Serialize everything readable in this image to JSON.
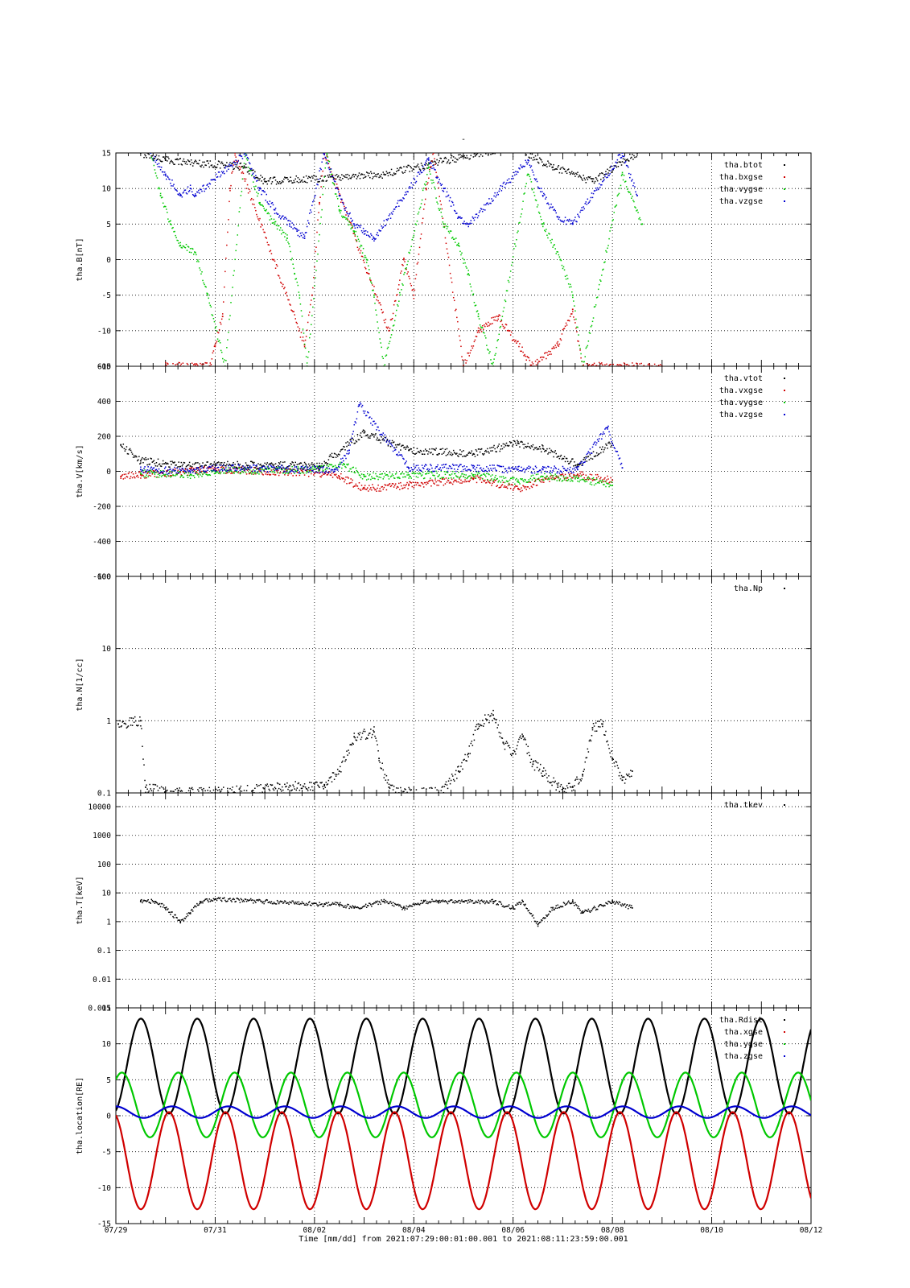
{
  "page_title": "-",
  "xaxis": {
    "tick_labels": [
      "07/29",
      "07/31",
      "08/02",
      "08/04",
      "08/06",
      "08/08",
      "08/10",
      "08/12"
    ],
    "caption": "Time [mm/dd]  from 2021:07:29:00:01:00.001  to  2021:08:11:23:59:00.001"
  },
  "colors": {
    "black": "#000000",
    "red": "#d00000",
    "green": "#00c800",
    "blue": "#0000d0"
  },
  "chart_data": [
    {
      "type": "scatter",
      "ylabel": "tha.B[nT]",
      "ylim": [
        -15,
        15
      ],
      "yscale": "linear",
      "y_tick_labels": [
        "15",
        "10",
        "5",
        "0",
        "-5",
        "-10",
        "-15"
      ],
      "xlim_days": [
        0,
        14
      ],
      "grid": true,
      "legend_position": "top-right",
      "series": [
        {
          "name": "tha.btot",
          "color": "#000000",
          "points": [
            [
              0.5,
              15
            ],
            [
              1.0,
              14
            ],
            [
              2.6,
              13
            ],
            [
              3.0,
              11
            ],
            [
              5.4,
              12
            ],
            [
              8.0,
              16
            ],
            [
              8.8,
              13
            ],
            [
              9.6,
              11
            ],
            [
              10.5,
              15
            ]
          ]
        },
        {
          "name": "tha.bxgse",
          "color": "#d00000",
          "points": [
            [
              1.0,
              -15
            ],
            [
              1.3,
              -15
            ],
            [
              1.9,
              -15
            ],
            [
              2.0,
              -12
            ],
            [
              2.15,
              -8
            ],
            [
              2.3,
              10
            ],
            [
              2.4,
              15
            ],
            [
              3.8,
              -12
            ],
            [
              3.95,
              -5
            ],
            [
              4.1,
              8
            ],
            [
              4.2,
              15
            ],
            [
              5.5,
              -10
            ],
            [
              5.8,
              0
            ],
            [
              6.0,
              -5
            ],
            [
              6.25,
              10
            ],
            [
              6.4,
              15
            ],
            [
              7.0,
              -15
            ],
            [
              7.3,
              -10
            ],
            [
              7.7,
              -8
            ],
            [
              8.4,
              -15
            ],
            [
              8.9,
              -12
            ],
            [
              9.2,
              -7
            ],
            [
              9.4,
              -15
            ],
            [
              10.4,
              -15
            ],
            [
              11.0,
              -15
            ]
          ]
        },
        {
          "name": "tha.vygse",
          "color": "#00c800",
          "points": [
            [
              0.7,
              15
            ],
            [
              0.9,
              9
            ],
            [
              1.1,
              5
            ],
            [
              1.3,
              2
            ],
            [
              1.6,
              1
            ],
            [
              1.85,
              -5
            ],
            [
              2.2,
              -15
            ],
            [
              2.6,
              15
            ],
            [
              2.9,
              8
            ],
            [
              3.2,
              5
            ],
            [
              3.45,
              3
            ],
            [
              3.6,
              -2
            ],
            [
              3.7,
              -5
            ],
            [
              3.85,
              -15
            ],
            [
              4.25,
              15
            ],
            [
              4.5,
              7
            ],
            [
              4.8,
              4
            ],
            [
              5.05,
              0
            ],
            [
              5.2,
              -5
            ],
            [
              5.4,
              -15
            ],
            [
              6.3,
              13
            ],
            [
              6.6,
              5
            ],
            [
              6.9,
              2
            ],
            [
              7.1,
              -2
            ],
            [
              7.3,
              -8
            ],
            [
              7.6,
              -15
            ],
            [
              8.3,
              12
            ],
            [
              8.6,
              5
            ],
            [
              8.95,
              0
            ],
            [
              9.2,
              -5
            ],
            [
              9.4,
              -15
            ],
            [
              10.2,
              12
            ],
            [
              10.6,
              5
            ]
          ]
        },
        {
          "name": "tha.vzgse",
          "color": "#0000d0",
          "points": [
            [
              0.7,
              15
            ],
            [
              1.0,
              12
            ],
            [
              1.3,
              9
            ],
            [
              1.5,
              10
            ],
            [
              1.6,
              9
            ],
            [
              2.6,
              15
            ],
            [
              2.9,
              10
            ],
            [
              3.2,
              7
            ],
            [
              3.5,
              5
            ],
            [
              3.65,
              4
            ],
            [
              3.8,
              3
            ],
            [
              4.2,
              15
            ],
            [
              4.5,
              9
            ],
            [
              4.8,
              5
            ],
            [
              5.0,
              4
            ],
            [
              5.2,
              3
            ],
            [
              6.3,
              14
            ],
            [
              6.6,
              10
            ],
            [
              6.9,
              6
            ],
            [
              7.1,
              5
            ],
            [
              8.3,
              14
            ],
            [
              8.6,
              9
            ],
            [
              8.9,
              6
            ],
            [
              9.2,
              5
            ],
            [
              10.2,
              15
            ],
            [
              10.5,
              9
            ]
          ]
        }
      ]
    },
    {
      "type": "scatter",
      "ylabel": "tha.V[km/s]",
      "ylim": [
        -600,
        600
      ],
      "yscale": "linear",
      "y_tick_labels": [
        "600",
        "400",
        "200",
        "0",
        "-200",
        "-400",
        "-600"
      ],
      "xlim_days": [
        0,
        14
      ],
      "grid": true,
      "legend_position": "top-right",
      "series": [
        {
          "name": "tha.vtot",
          "color": "#000000",
          "points": [
            [
              0.1,
              150
            ],
            [
              0.5,
              60
            ],
            [
              1.5,
              30
            ],
            [
              2.0,
              40
            ],
            [
              4.1,
              30
            ],
            [
              5.0,
              220
            ],
            [
              5.9,
              120
            ],
            [
              7.2,
              100
            ],
            [
              8.1,
              160
            ],
            [
              8.6,
              130
            ],
            [
              9.3,
              40
            ],
            [
              10.0,
              160
            ]
          ]
        },
        {
          "name": "tha.vxgse",
          "color": "#d00000",
          "points": [
            [
              0.1,
              -30
            ],
            [
              0.5,
              -20
            ],
            [
              1.5,
              0
            ],
            [
              2.0,
              10
            ],
            [
              4.1,
              -10
            ],
            [
              4.5,
              -30
            ],
            [
              5.0,
              -100
            ],
            [
              5.9,
              -80
            ],
            [
              7.2,
              -40
            ],
            [
              8.1,
              -100
            ],
            [
              8.6,
              -50
            ],
            [
              9.3,
              -20
            ],
            [
              10.0,
              -50
            ]
          ]
        },
        {
          "name": "tha.vygse",
          "color": "#00c800",
          "points": [
            [
              0.5,
              -10
            ],
            [
              1.5,
              -20
            ],
            [
              2.0,
              0
            ],
            [
              4.1,
              10
            ],
            [
              4.6,
              40
            ],
            [
              5.0,
              -30
            ],
            [
              5.9,
              -20
            ],
            [
              7.2,
              -20
            ],
            [
              8.1,
              -60
            ],
            [
              8.6,
              -30
            ],
            [
              9.3,
              -40
            ],
            [
              10.0,
              -80
            ]
          ]
        },
        {
          "name": "tha.vzgse",
          "color": "#0000d0",
          "points": [
            [
              0.5,
              10
            ],
            [
              1.5,
              0
            ],
            [
              2.0,
              20
            ],
            [
              4.1,
              10
            ],
            [
              4.4,
              0
            ],
            [
              4.7,
              120
            ],
            [
              4.9,
              380
            ],
            [
              5.9,
              20
            ],
            [
              7.2,
              20
            ],
            [
              8.1,
              10
            ],
            [
              8.6,
              10
            ],
            [
              9.3,
              10
            ],
            [
              9.9,
              250
            ],
            [
              10.2,
              20
            ]
          ]
        }
      ]
    },
    {
      "type": "scatter",
      "ylabel": "tha.N[1/cc]",
      "ylim": [
        0.1,
        100
      ],
      "yscale": "log",
      "y_tick_labels": [
        "100",
        "10",
        "1",
        "0.1"
      ],
      "xlim_days": [
        0,
        14
      ],
      "grid": true,
      "legend_position": "top-right",
      "series": [
        {
          "name": "tha.Np",
          "color": "#000000",
          "points": [
            [
              0.05,
              0.9
            ],
            [
              0.5,
              1.0
            ],
            [
              0.6,
              0.12
            ],
            [
              1.0,
              0.1
            ],
            [
              1.5,
              0.1
            ],
            [
              2.0,
              0.1
            ],
            [
              4.2,
              0.13
            ],
            [
              4.5,
              0.2
            ],
            [
              4.8,
              0.6
            ],
            [
              5.2,
              0.7
            ],
            [
              5.3,
              0.3
            ],
            [
              5.5,
              0.12
            ],
            [
              5.7,
              0.1
            ],
            [
              6.5,
              0.1
            ],
            [
              6.9,
              0.2
            ],
            [
              7.1,
              0.35
            ],
            [
              7.3,
              0.9
            ],
            [
              7.6,
              1.2
            ],
            [
              7.8,
              0.5
            ],
            [
              8.0,
              0.35
            ],
            [
              8.2,
              0.6
            ],
            [
              8.4,
              0.25
            ],
            [
              8.6,
              0.2
            ],
            [
              8.9,
              0.12
            ],
            [
              9.2,
              0.12
            ],
            [
              9.4,
              0.18
            ],
            [
              9.6,
              0.8
            ],
            [
              9.8,
              0.9
            ],
            [
              10.0,
              0.3
            ],
            [
              10.2,
              0.15
            ],
            [
              10.4,
              0.2
            ]
          ]
        }
      ]
    },
    {
      "type": "scatter",
      "ylabel": "tha.T[keV]",
      "ylim": [
        0.001,
        30000
      ],
      "yscale": "log",
      "y_tick_labels": [
        "10000",
        "1000",
        "100",
        "10",
        "1",
        "0.1",
        "0.01",
        "0.001"
      ],
      "xlim_days": [
        0,
        14
      ],
      "grid": true,
      "legend_position": "top-right",
      "series": [
        {
          "name": "tha.tkev",
          "color": "#000000",
          "points": [
            [
              0.5,
              5
            ],
            [
              0.8,
              5
            ],
            [
              1.0,
              3
            ],
            [
              1.3,
              1
            ],
            [
              1.5,
              2
            ],
            [
              1.7,
              5
            ],
            [
              2.0,
              6
            ],
            [
              4.2,
              4
            ],
            [
              4.5,
              4
            ],
            [
              4.8,
              3
            ],
            [
              5.4,
              5
            ],
            [
              5.8,
              3
            ],
            [
              6.2,
              5
            ],
            [
              6.5,
              5
            ],
            [
              7.0,
              5
            ],
            [
              7.6,
              5
            ],
            [
              8.0,
              3
            ],
            [
              8.2,
              5
            ],
            [
              8.5,
              0.8
            ],
            [
              8.8,
              3
            ],
            [
              9.2,
              5
            ],
            [
              9.4,
              2
            ],
            [
              10.0,
              5
            ],
            [
              10.4,
              3
            ]
          ]
        }
      ]
    },
    {
      "type": "line",
      "ylabel": "tha.location[RE]",
      "ylim": [
        -15,
        15
      ],
      "yscale": "linear",
      "y_tick_labels": [
        "15",
        "10",
        "5",
        "0",
        "-5",
        "-10",
        "-15"
      ],
      "xlim_days": [
        0,
        14
      ],
      "orbit_period_days": 1.135,
      "grid": true,
      "legend_position": "top-right",
      "series": [
        {
          "name": "tha.Rdist",
          "color": "#000000",
          "min": 0.3,
          "max": 13.5
        },
        {
          "name": "tha.xgse",
          "color": "#d00000",
          "min": -13.0,
          "max": 0.5
        },
        {
          "name": "tha.ygse",
          "color": "#00c800",
          "min": -3.0,
          "max": 6.0
        },
        {
          "name": "tha.zgse",
          "color": "#0000d0",
          "min": -0.3,
          "max": 1.3
        }
      ]
    }
  ]
}
